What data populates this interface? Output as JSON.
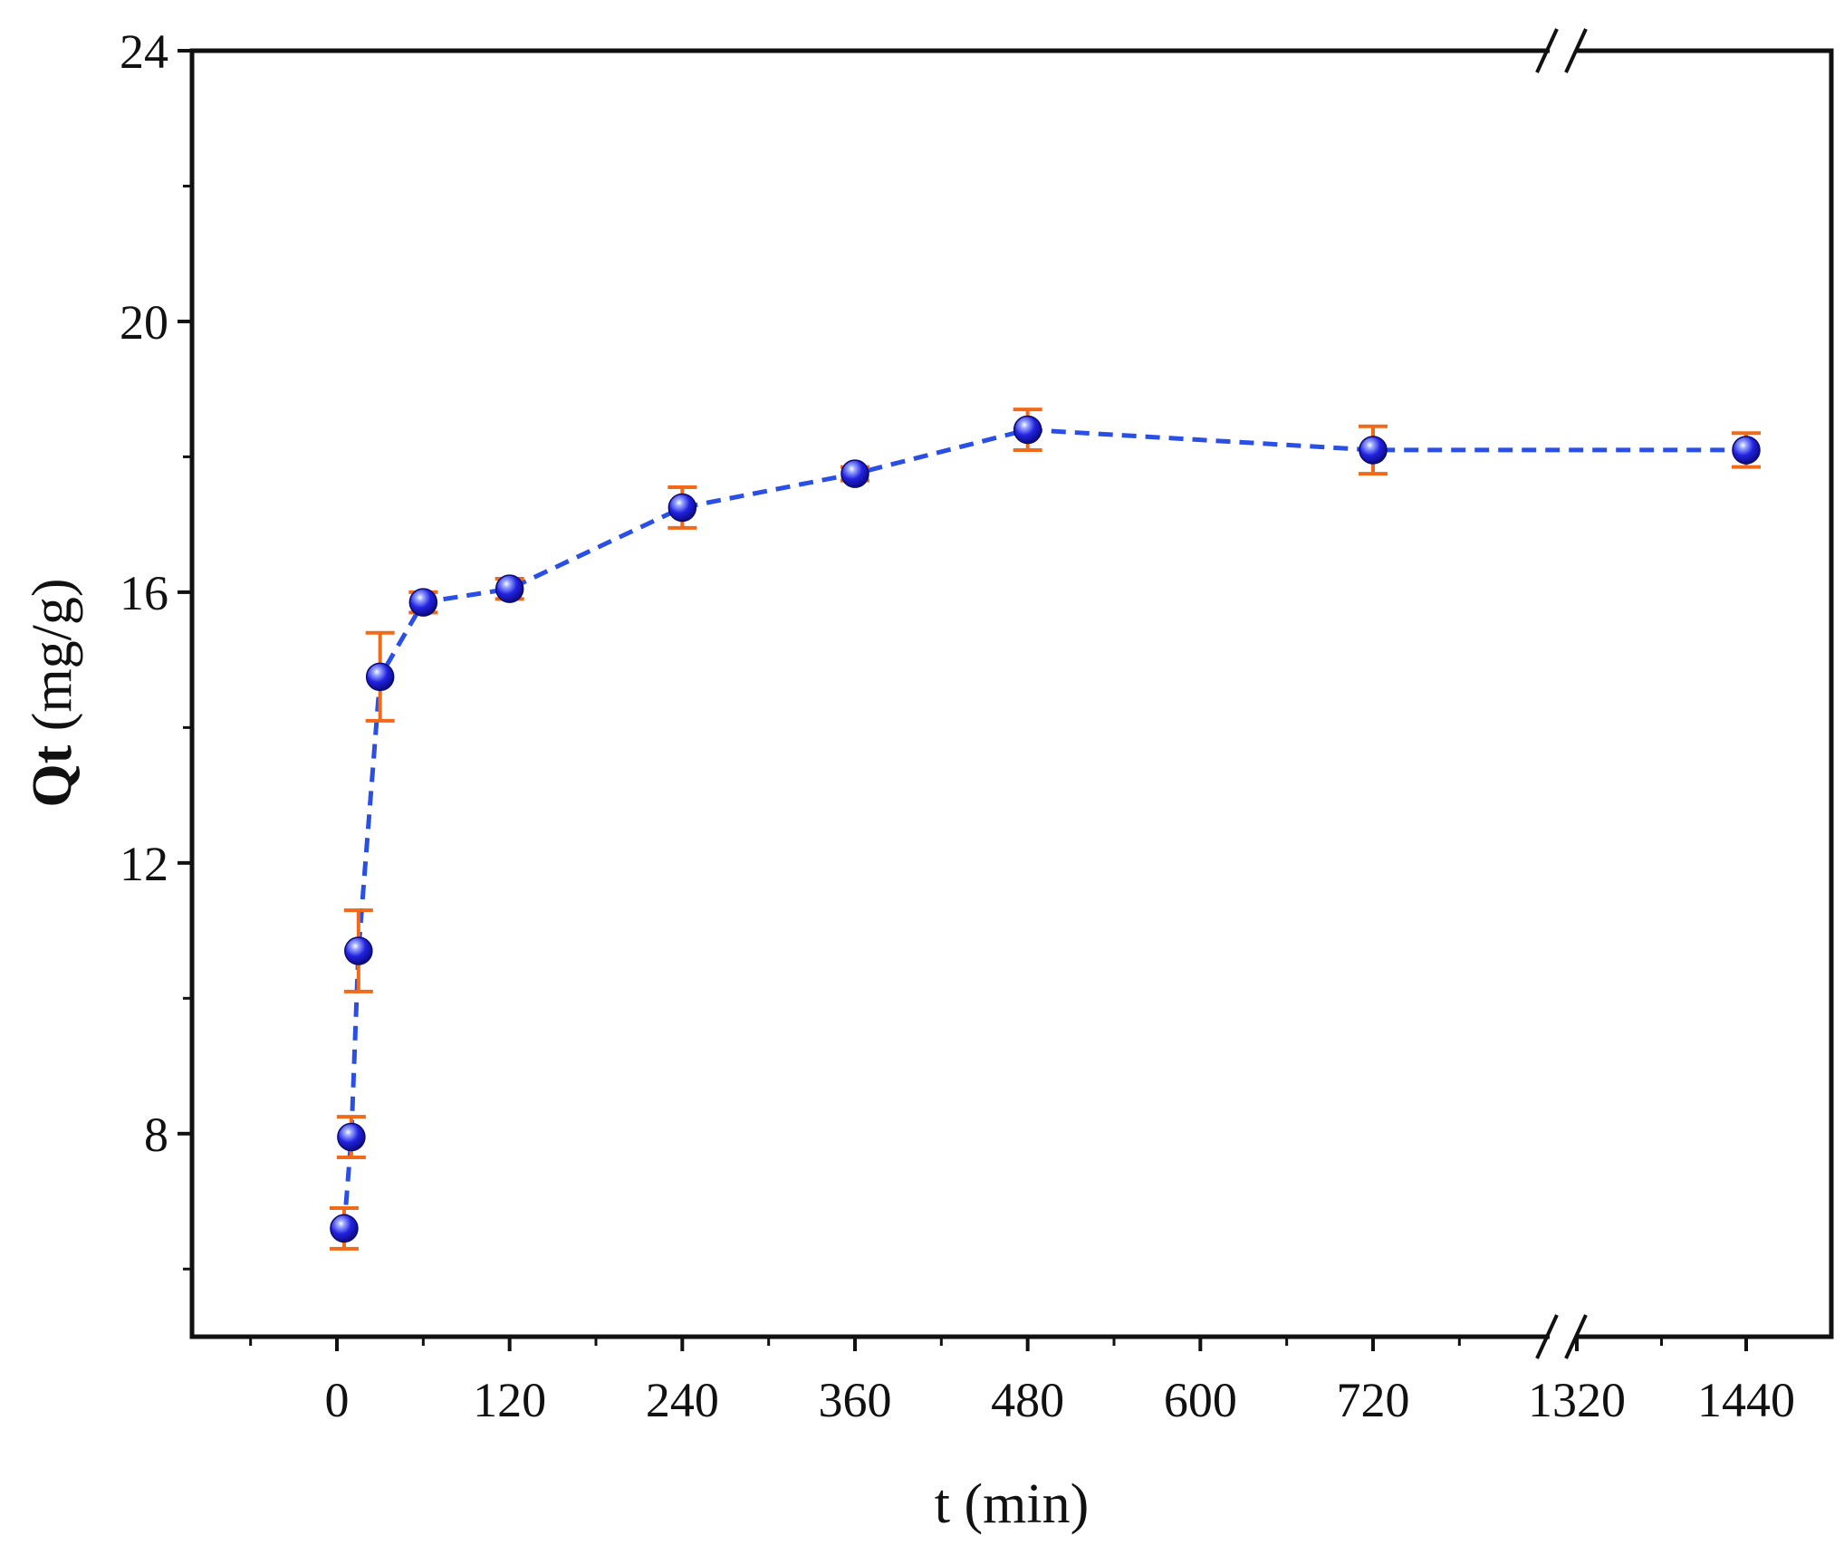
{
  "chart_data": {
    "type": "scatter",
    "xlabel": "t (min)",
    "ylabel_bold": "Qt",
    "ylabel_rest": " (mg/g)",
    "x_ticks": [
      "0",
      "120",
      "240",
      "360",
      "480",
      "600",
      "720",
      "1320",
      "1440"
    ],
    "y_ticks": [
      "8",
      "12",
      "16",
      "20",
      "24"
    ],
    "xlim": [
      -100,
      1550
    ],
    "x_break": [
      780,
      1260
    ],
    "ylim": [
      5.0,
      24
    ],
    "grid": false,
    "legend": "none",
    "series": [
      {
        "x": [
          5,
          10,
          15,
          30,
          60,
          120,
          240,
          360,
          480,
          720,
          1440
        ],
        "y": [
          6.6,
          7.95,
          10.7,
          14.75,
          15.85,
          16.05,
          17.25,
          17.75,
          18.4,
          18.1,
          18.1
        ],
        "error": [
          0.3,
          0.3,
          0.6,
          0.65,
          0.15,
          0.15,
          0.3,
          0.1,
          0.3,
          0.35,
          0.25
        ],
        "line_style": "dashed"
      }
    ],
    "colors": {
      "marker": "#1f1fe6",
      "line": "#2a4fe6",
      "error_bar": "#f06a1a",
      "axis": "#111111"
    }
  }
}
